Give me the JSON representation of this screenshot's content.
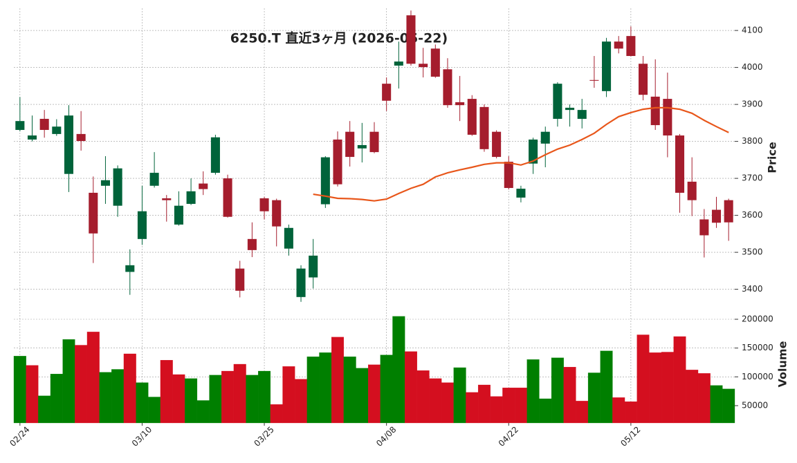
{
  "chart_data": {
    "type": "candlestick",
    "title": "6250.T  直近3ヶ月 (2026-05-22)",
    "categories": [
      "02/24",
      null,
      null,
      null,
      null,
      null,
      null,
      null,
      null,
      null,
      "03/10",
      null,
      null,
      null,
      null,
      null,
      null,
      null,
      null,
      null,
      "03/25",
      null,
      null,
      null,
      null,
      null,
      null,
      null,
      null,
      null,
      "04/08",
      null,
      null,
      null,
      null,
      null,
      null,
      null,
      null,
      null,
      "04/22",
      null,
      null,
      null,
      null,
      null,
      null,
      null,
      null,
      null,
      "05/12",
      null,
      null,
      null,
      null,
      null,
      null,
      null,
      null
    ],
    "open": [
      3831,
      3805,
      3861,
      3820,
      3712,
      3820,
      3661,
      3680,
      3626,
      3447,
      3536,
      3680,
      3646,
      3575,
      3631,
      3686,
      3715,
      3700,
      3456,
      3536,
      3646,
      3641,
      3510,
      3379,
      3432,
      3630,
      3805,
      3826,
      3781,
      3826,
      3956,
      4005,
      4141,
      4010,
      4051,
      3995,
      3906,
      3915,
      3893,
      3826,
      3745,
      3648,
      3740,
      3794,
      3861,
      3885,
      3861,
      3966,
      3936,
      4070,
      4085,
      4010,
      3921,
      3915,
      3816,
      3691,
      3589,
      3615,
      3641
    ],
    "high": [
      3920,
      3870,
      3885,
      3860,
      3898,
      3882,
      3705,
      3760,
      3735,
      3508,
      3680,
      3771,
      3655,
      3665,
      3700,
      3719,
      3818,
      3710,
      3477,
      3581,
      3650,
      3645,
      3575,
      3465,
      3536,
      3760,
      3827,
      3855,
      3850,
      3852,
      3973,
      4070,
      4154,
      4053,
      4062,
      4025,
      3977,
      3925,
      3900,
      3830,
      3760,
      3680,
      3810,
      3840,
      3960,
      3900,
      3915,
      4031,
      4080,
      4085,
      4111,
      4031,
      4022,
      3986,
      3820,
      3757,
      3617,
      3650,
      3645
    ],
    "low": [
      3827,
      3800,
      3810,
      3815,
      3663,
      3775,
      3471,
      3631,
      3596,
      3385,
      3520,
      3675,
      3583,
      3572,
      3628,
      3655,
      3710,
      3594,
      3378,
      3487,
      3589,
      3516,
      3491,
      3366,
      3402,
      3620,
      3678,
      3732,
      3743,
      3768,
      3882,
      3943,
      4005,
      3973,
      3972,
      3891,
      3855,
      3815,
      3772,
      3754,
      3670,
      3635,
      3712,
      3730,
      3840,
      3840,
      3835,
      3945,
      3920,
      4038,
      4030,
      3911,
      3831,
      3757,
      3607,
      3598,
      3486,
      3566,
      3531
    ],
    "close": [
      3855,
      3816,
      3831,
      3840,
      3870,
      3801,
      3551,
      3695,
      3727,
      3465,
      3611,
      3715,
      3641,
      3626,
      3665,
      3671,
      3811,
      3596,
      3396,
      3506,
      3611,
      3570,
      3566,
      3456,
      3491,
      3757,
      3684,
      3758,
      3790,
      3771,
      3910,
      4016,
      4010,
      4001,
      3975,
      3898,
      3898,
      3818,
      3779,
      3758,
      3674,
      3672,
      3805,
      3826,
      3956,
      3891,
      3885,
      3964,
      4070,
      4051,
      4031,
      3926,
      3844,
      3816,
      3661,
      3641,
      3546,
      3580,
      3581
    ],
    "up_color": "#00633a",
    "down_color": "#a51d2d",
    "moving_average": {
      "color": "#e8561a",
      "values": [
        null,
        null,
        null,
        null,
        null,
        null,
        null,
        null,
        null,
        null,
        null,
        null,
        null,
        null,
        null,
        null,
        null,
        null,
        null,
        null,
        null,
        null,
        null,
        null,
        3657,
        3652,
        3646,
        3645,
        3643,
        3639,
        3644,
        3659,
        3673,
        3684,
        3704,
        3715,
        3723,
        3730,
        3738,
        3742,
        3742,
        3736,
        3747,
        3764,
        3779,
        3790,
        3805,
        3822,
        3846,
        3867,
        3878,
        3887,
        3891,
        3891,
        3887,
        3876,
        3857,
        3840,
        3824
      ]
    },
    "ylim": [
      3360,
      4160
    ],
    "yticks": [
      3400,
      3500,
      3600,
      3700,
      3800,
      3900,
      4000,
      4100
    ],
    "ylabel": "Price",
    "grid": true,
    "volume": {
      "ylabel": "Volume",
      "ylim": [
        20000,
        224000
      ],
      "yticks": [
        50000,
        100000,
        150000,
        200000
      ],
      "up_color": "#007f00",
      "down_color": "#d40f1f",
      "values": [
        136000,
        120000,
        67000,
        105000,
        165000,
        155000,
        178000,
        108000,
        113000,
        140000,
        90000,
        65000,
        129000,
        104000,
        97000,
        59000,
        103000,
        110000,
        122000,
        103000,
        110000,
        52000,
        118000,
        96000,
        135000,
        142000,
        169000,
        135000,
        115000,
        121000,
        138000,
        205000,
        144000,
        111000,
        97000,
        90000,
        116000,
        73000,
        86000,
        66000,
        81000,
        81000,
        130000,
        62000,
        133000,
        117000,
        58000,
        107000,
        145000,
        64000,
        57000,
        173000,
        142000,
        143000,
        170000,
        112000,
        106000,
        85000,
        79000
      ]
    }
  }
}
